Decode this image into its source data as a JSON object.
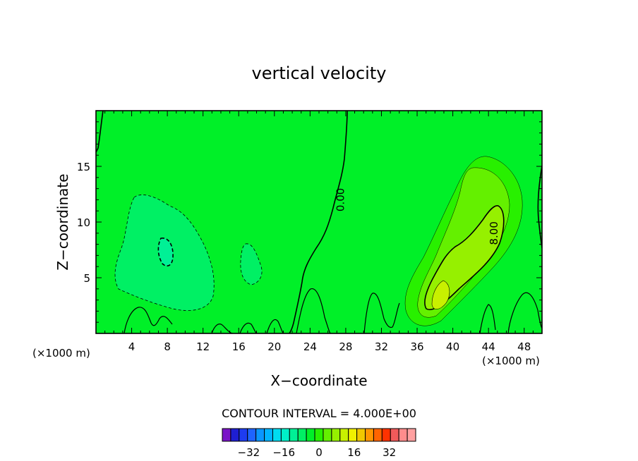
{
  "chart_data": {
    "type": "heatmap",
    "title": "vertical velocity",
    "xlabel": "X−coordinate",
    "ylabel": "Z−coordinate",
    "x_unit_left": "(×1000 m)",
    "x_unit_right": "(×1000 m)",
    "xlim": [
      0,
      50
    ],
    "ylim": [
      0,
      20
    ],
    "x_ticks": [
      4,
      8,
      12,
      16,
      20,
      24,
      28,
      32,
      36,
      40,
      44,
      48
    ],
    "y_ticks": [
      5,
      10,
      15
    ],
    "contour_labels": [
      {
        "text": "0.00",
        "x": 27.8,
        "y": 12.0
      },
      {
        "text": "8.00",
        "x": 45.0,
        "y": 9.0
      }
    ],
    "contour_interval_text": "CONTOUR INTERVAL = 4.000E+00",
    "colorbar": {
      "levels": [
        -40,
        -36,
        -32,
        -28,
        -24,
        -20,
        -16,
        -12,
        -8,
        -4,
        0,
        4,
        8,
        12,
        16,
        20,
        24,
        28,
        32,
        36,
        40
      ],
      "colors": [
        "#7a14c8",
        "#1e1ed2",
        "#1e3cf0",
        "#1e64ff",
        "#0a96ff",
        "#00b4ff",
        "#00dcf0",
        "#00f0c8",
        "#00f096",
        "#00f064",
        "#00f028",
        "#28f000",
        "#64f000",
        "#96f000",
        "#c8f000",
        "#f0f000",
        "#f0c800",
        "#ff9600",
        "#ff6400",
        "#ff3200",
        "#f05a5a",
        "#ff8c8c",
        "#ffa0a0"
      ],
      "tick_labels": [
        "−32",
        "−16",
        "0",
        "16",
        "32"
      ]
    },
    "colors": {
      "background": "#00f028",
      "weak_negative": "#00f064",
      "stronger_negative": "#00f096",
      "positive_1": "#28f000",
      "positive_2": "#64f000",
      "positive_3": "#96f000",
      "positive_4": "#c8f000"
    }
  }
}
